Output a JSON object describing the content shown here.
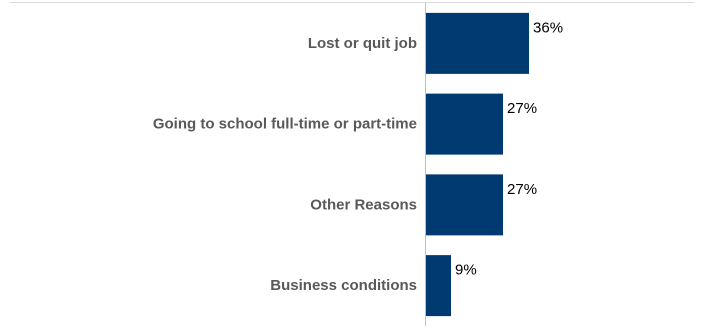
{
  "colors": {
    "bar": "#003a70",
    "category_text": "#595959",
    "value_text": "#000000",
    "axis": "#bfbfbf",
    "top_rule": "#d9d9d9"
  },
  "chart_data": {
    "type": "bar",
    "orientation": "horizontal",
    "categories": [
      "Lost or quit job",
      "Going to school full-time or part-time",
      "Other Reasons",
      "Business conditions"
    ],
    "values": [
      36,
      27,
      27,
      9
    ],
    "value_labels": [
      "36%",
      "27%",
      "27%",
      "9%"
    ],
    "unit": "%",
    "xlim": [
      0,
      100
    ],
    "grid": false,
    "legend": "none"
  }
}
